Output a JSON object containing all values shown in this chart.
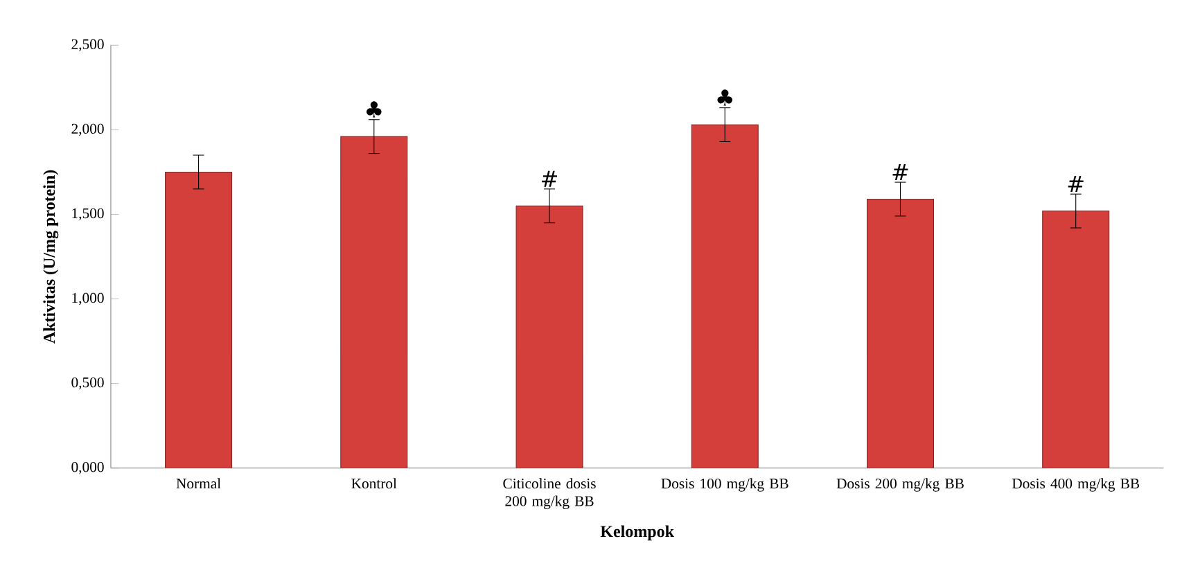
{
  "chart_data": {
    "type": "bar",
    "xlabel": "Kelompok",
    "ylabel": "Aktivitas (U/mg protein)",
    "categories": [
      "Normal",
      "Kontrol",
      "Citicoline dosis 200  mg/kg BB",
      "Dosis 100 mg/kg BB",
      "Dosis 200 mg/kg BB",
      "Dosis 400 mg/kg BB"
    ],
    "values": [
      1.75,
      1.96,
      1.55,
      2.03,
      1.59,
      1.52
    ],
    "errors": [
      0.1,
      0.1,
      0.1,
      0.1,
      0.1,
      0.1
    ],
    "color": "#d43f3c",
    "ylim": [
      0,
      2.5
    ],
    "yticks": [
      {
        "value": 0,
        "label": "0,000"
      },
      {
        "value": 0.5,
        "label": "0,500"
      },
      {
        "value": 1,
        "label": "1,000"
      },
      {
        "value": 1.5,
        "label": "1,500"
      },
      {
        "value": 2,
        "label": "2,000"
      },
      {
        "value": 2.5,
        "label": "2,500"
      }
    ],
    "annotations": [
      {
        "text": "♣",
        "x": "Kontrol",
        "y": 2.06
      },
      {
        "text": "#",
        "x": "Citicoline dosis 200  mg/kg BB",
        "y": 1.65
      },
      {
        "text": "♣",
        "x": "Dosis 100 mg/kg BB",
        "y": 2.13
      },
      {
        "text": "#",
        "x": "Dosis 200 mg/kg BB",
        "y": 1.69
      },
      {
        "text": "#",
        "x": "Dosis 400 mg/kg BB",
        "y": 1.62
      }
    ]
  }
}
